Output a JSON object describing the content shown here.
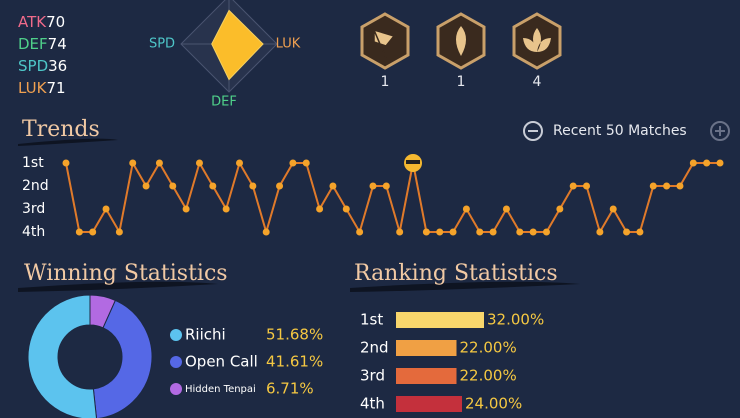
{
  "stats": [
    {
      "name": "ATK",
      "value": 70,
      "color": "#f06a8a"
    },
    {
      "name": "DEF",
      "value": 74,
      "color": "#4fd08a"
    },
    {
      "name": "SPD",
      "value": 36,
      "color": "#4ec6c8"
    },
    {
      "name": "LUK",
      "value": 71,
      "color": "#f0a050"
    }
  ],
  "radar": {
    "labels": [
      "SPD",
      "LUK",
      "DEF"
    ],
    "rlim": [
      0,
      100
    ],
    "color": "#fbbd2a"
  },
  "badge_counts": [
    1,
    1,
    4
  ],
  "chart_data": [
    {
      "type": "line",
      "title": "Trends",
      "subtitle": "Recent 50 Matches",
      "color": "#e07a2a",
      "marker_color": "#f5a32a",
      "ylim": [
        1,
        4
      ],
      "yticks": [
        {
          "value": 1,
          "label": "1st"
        },
        {
          "value": 2,
          "label": "2nd"
        },
        {
          "value": 3,
          "label": "3rd"
        },
        {
          "value": 4,
          "label": "4th"
        }
      ],
      "values": [
        1,
        4,
        4,
        3,
        4,
        1,
        2,
        1,
        2,
        3,
        1,
        2,
        3,
        1,
        2,
        4,
        2,
        1,
        1,
        3,
        2,
        3,
        4,
        2,
        2,
        4,
        1,
        4,
        4,
        4,
        3,
        4,
        4,
        3,
        4,
        4,
        4,
        3,
        2,
        2,
        4,
        3,
        4,
        4,
        2,
        2,
        2,
        1,
        1,
        1
      ]
    },
    {
      "type": "pie",
      "title": "Winning Statistics",
      "categories": [
        "Riichi",
        "Open Call",
        "Hidden Tenpai"
      ],
      "values": [
        51.68,
        41.61,
        6.71
      ],
      "value_labels": [
        "51.68%",
        "41.61%",
        "6.71%"
      ],
      "colors": [
        "#5cc3ee",
        "#5568e6",
        "#b26ae2"
      ]
    },
    {
      "type": "bar",
      "title": "Ranking Statistics",
      "categories": [
        "1st",
        "2nd",
        "3rd",
        "4th"
      ],
      "values": [
        32,
        22,
        22,
        24
      ],
      "value_labels": [
        "32.00%",
        "22.00%",
        "22.00%",
        "24.00%"
      ],
      "colors": [
        "#f8d66c",
        "#f0a044",
        "#e46a3c",
        "#c4303c"
      ]
    }
  ]
}
